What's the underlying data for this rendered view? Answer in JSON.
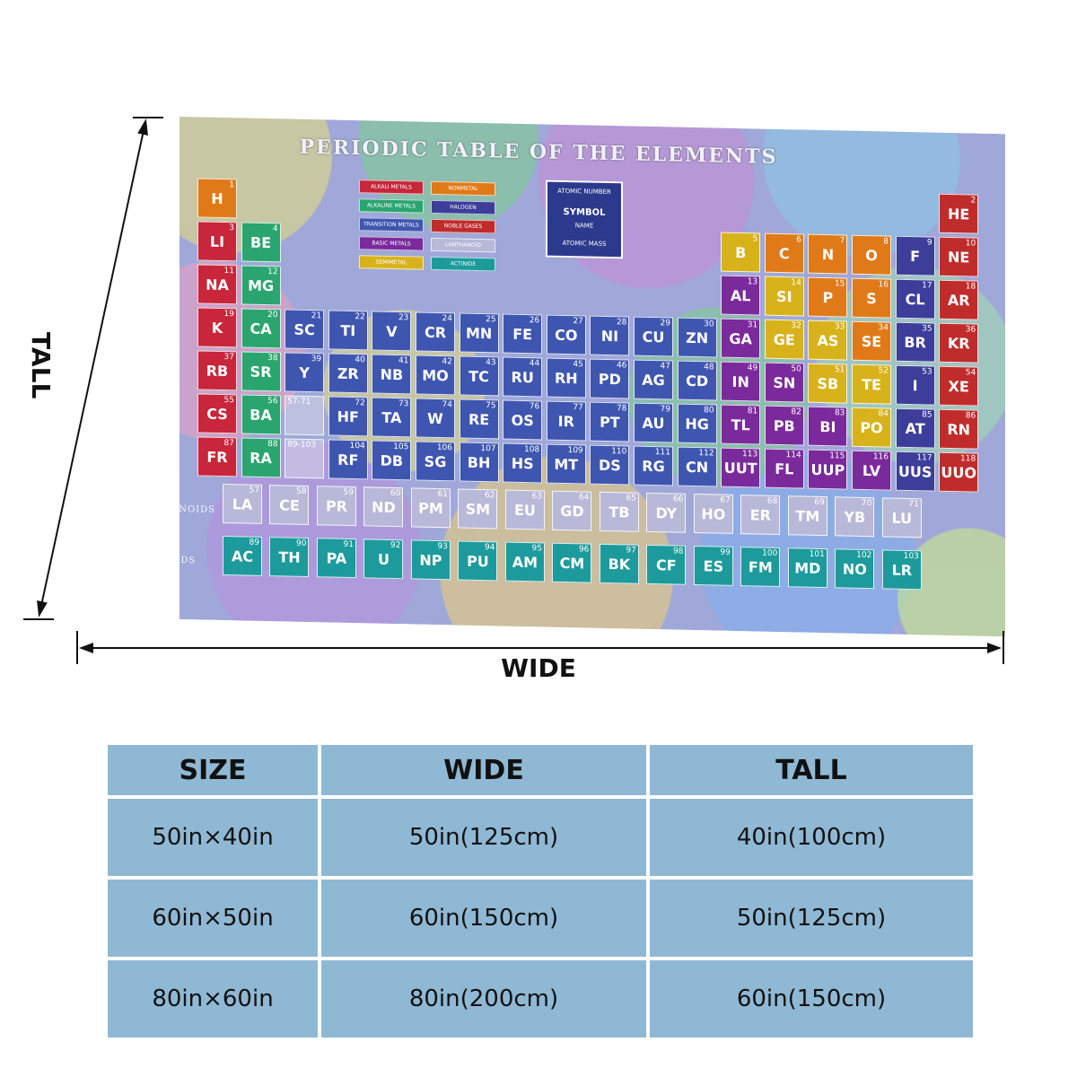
{
  "blanket": {
    "title": "PERIODIC TABLE OF THE ELEMENTS",
    "legend": [
      {
        "label": "ALKALI METALS",
        "color": "#c8263a"
      },
      {
        "label": "NONMETAL",
        "color": "#e07a18"
      },
      {
        "label": "ALKALINE METALS",
        "color": "#2aa56f"
      },
      {
        "label": "HALOGEN",
        "color": "#3d3d9a"
      },
      {
        "label": "TRANSITION METALS",
        "color": "#3f56b0"
      },
      {
        "label": "NOBLE GASES",
        "color": "#c02c2c"
      },
      {
        "label": "BASIC METALS",
        "color": "#7b2a9b"
      },
      {
        "label": "LANTHANOID",
        "color": "#b8b8d8"
      },
      {
        "label": "SEMIMETAL",
        "color": "#d8b21a"
      },
      {
        "label": "ACTINIDE",
        "color": "#1d9a9c"
      }
    ],
    "key": {
      "number": "ATOMIC NUMBER",
      "symbol": "SYMBOL",
      "name": "NAME",
      "mass": "ATOMIC MASS"
    },
    "lanthanoids_label": "LANTHANOIDS",
    "actinoids_label": "ACTINOIDS",
    "placeholders": {
      "lan": "57-71",
      "act": "89-103"
    },
    "elements": [
      {
        "s": "H",
        "n": 1,
        "r": 1,
        "c": 1,
        "k": "#e07a18"
      },
      {
        "s": "HE",
        "n": 2,
        "r": 1,
        "c": 18,
        "k": "#c02c2c"
      },
      {
        "s": "LI",
        "n": 3,
        "r": 2,
        "c": 1,
        "k": "#c8263a"
      },
      {
        "s": "BE",
        "n": 4,
        "r": 2,
        "c": 2,
        "k": "#2aa56f"
      },
      {
        "s": "B",
        "n": 5,
        "r": 2,
        "c": 13,
        "k": "#d8b21a"
      },
      {
        "s": "C",
        "n": 6,
        "r": 2,
        "c": 14,
        "k": "#e07a18"
      },
      {
        "s": "N",
        "n": 7,
        "r": 2,
        "c": 15,
        "k": "#e07a18"
      },
      {
        "s": "O",
        "n": 8,
        "r": 2,
        "c": 16,
        "k": "#e07a18"
      },
      {
        "s": "F",
        "n": 9,
        "r": 2,
        "c": 17,
        "k": "#3d3d9a"
      },
      {
        "s": "NE",
        "n": 10,
        "r": 2,
        "c": 18,
        "k": "#c02c2c"
      },
      {
        "s": "NA",
        "n": 11,
        "r": 3,
        "c": 1,
        "k": "#c8263a"
      },
      {
        "s": "MG",
        "n": 12,
        "r": 3,
        "c": 2,
        "k": "#2aa56f"
      },
      {
        "s": "AL",
        "n": 13,
        "r": 3,
        "c": 13,
        "k": "#7b2a9b"
      },
      {
        "s": "SI",
        "n": 14,
        "r": 3,
        "c": 14,
        "k": "#d8b21a"
      },
      {
        "s": "P",
        "n": 15,
        "r": 3,
        "c": 15,
        "k": "#e07a18"
      },
      {
        "s": "S",
        "n": 16,
        "r": 3,
        "c": 16,
        "k": "#e07a18"
      },
      {
        "s": "CL",
        "n": 17,
        "r": 3,
        "c": 17,
        "k": "#3d3d9a"
      },
      {
        "s": "AR",
        "n": 18,
        "r": 3,
        "c": 18,
        "k": "#c02c2c"
      },
      {
        "s": "K",
        "n": 19,
        "r": 4,
        "c": 1,
        "k": "#c8263a"
      },
      {
        "s": "CA",
        "n": 20,
        "r": 4,
        "c": 2,
        "k": "#2aa56f"
      },
      {
        "s": "SC",
        "n": 21,
        "r": 4,
        "c": 3,
        "k": "#3f56b0"
      },
      {
        "s": "TI",
        "n": 22,
        "r": 4,
        "c": 4,
        "k": "#3f56b0"
      },
      {
        "s": "V",
        "n": 23,
        "r": 4,
        "c": 5,
        "k": "#3f56b0"
      },
      {
        "s": "CR",
        "n": 24,
        "r": 4,
        "c": 6,
        "k": "#3f56b0"
      },
      {
        "s": "MN",
        "n": 25,
        "r": 4,
        "c": 7,
        "k": "#3f56b0"
      },
      {
        "s": "FE",
        "n": 26,
        "r": 4,
        "c": 8,
        "k": "#3f56b0"
      },
      {
        "s": "CO",
        "n": 27,
        "r": 4,
        "c": 9,
        "k": "#3f56b0"
      },
      {
        "s": "NI",
        "n": 28,
        "r": 4,
        "c": 10,
        "k": "#3f56b0"
      },
      {
        "s": "CU",
        "n": 29,
        "r": 4,
        "c": 11,
        "k": "#3f56b0"
      },
      {
        "s": "ZN",
        "n": 30,
        "r": 4,
        "c": 12,
        "k": "#3f56b0"
      },
      {
        "s": "GA",
        "n": 31,
        "r": 4,
        "c": 13,
        "k": "#7b2a9b"
      },
      {
        "s": "GE",
        "n": 32,
        "r": 4,
        "c": 14,
        "k": "#d8b21a"
      },
      {
        "s": "AS",
        "n": 33,
        "r": 4,
        "c": 15,
        "k": "#d8b21a"
      },
      {
        "s": "SE",
        "n": 34,
        "r": 4,
        "c": 16,
        "k": "#e07a18"
      },
      {
        "s": "BR",
        "n": 35,
        "r": 4,
        "c": 17,
        "k": "#3d3d9a"
      },
      {
        "s": "KR",
        "n": 36,
        "r": 4,
        "c": 18,
        "k": "#c02c2c"
      },
      {
        "s": "RB",
        "n": 37,
        "r": 5,
        "c": 1,
        "k": "#c8263a"
      },
      {
        "s": "SR",
        "n": 38,
        "r": 5,
        "c": 2,
        "k": "#2aa56f"
      },
      {
        "s": "Y",
        "n": 39,
        "r": 5,
        "c": 3,
        "k": "#3f56b0"
      },
      {
        "s": "ZR",
        "n": 40,
        "r": 5,
        "c": 4,
        "k": "#3f56b0"
      },
      {
        "s": "NB",
        "n": 41,
        "r": 5,
        "c": 5,
        "k": "#3f56b0"
      },
      {
        "s": "MO",
        "n": 42,
        "r": 5,
        "c": 6,
        "k": "#3f56b0"
      },
      {
        "s": "TC",
        "n": 43,
        "r": 5,
        "c": 7,
        "k": "#3f56b0"
      },
      {
        "s": "RU",
        "n": 44,
        "r": 5,
        "c": 8,
        "k": "#3f56b0"
      },
      {
        "s": "RH",
        "n": 45,
        "r": 5,
        "c": 9,
        "k": "#3f56b0"
      },
      {
        "s": "PD",
        "n": 46,
        "r": 5,
        "c": 10,
        "k": "#3f56b0"
      },
      {
        "s": "AG",
        "n": 47,
        "r": 5,
        "c": 11,
        "k": "#3f56b0"
      },
      {
        "s": "CD",
        "n": 48,
        "r": 5,
        "c": 12,
        "k": "#3f56b0"
      },
      {
        "s": "IN",
        "n": 49,
        "r": 5,
        "c": 13,
        "k": "#7b2a9b"
      },
      {
        "s": "SN",
        "n": 50,
        "r": 5,
        "c": 14,
        "k": "#7b2a9b"
      },
      {
        "s": "SB",
        "n": 51,
        "r": 5,
        "c": 15,
        "k": "#d8b21a"
      },
      {
        "s": "TE",
        "n": 52,
        "r": 5,
        "c": 16,
        "k": "#d8b21a"
      },
      {
        "s": "I",
        "n": 53,
        "r": 5,
        "c": 17,
        "k": "#3d3d9a"
      },
      {
        "s": "XE",
        "n": 54,
        "r": 5,
        "c": 18,
        "k": "#c02c2c"
      },
      {
        "s": "CS",
        "n": 55,
        "r": 6,
        "c": 1,
        "k": "#c8263a"
      },
      {
        "s": "BA",
        "n": 56,
        "r": 6,
        "c": 2,
        "k": "#2aa56f"
      },
      {
        "s": "HF",
        "n": 72,
        "r": 6,
        "c": 4,
        "k": "#3f56b0"
      },
      {
        "s": "TA",
        "n": 73,
        "r": 6,
        "c": 5,
        "k": "#3f56b0"
      },
      {
        "s": "W",
        "n": 74,
        "r": 6,
        "c": 6,
        "k": "#3f56b0"
      },
      {
        "s": "RE",
        "n": 75,
        "r": 6,
        "c": 7,
        "k": "#3f56b0"
      },
      {
        "s": "OS",
        "n": 76,
        "r": 6,
        "c": 8,
        "k": "#3f56b0"
      },
      {
        "s": "IR",
        "n": 77,
        "r": 6,
        "c": 9,
        "k": "#3f56b0"
      },
      {
        "s": "PT",
        "n": 78,
        "r": 6,
        "c": 10,
        "k": "#3f56b0"
      },
      {
        "s": "AU",
        "n": 79,
        "r": 6,
        "c": 11,
        "k": "#3f56b0"
      },
      {
        "s": "HG",
        "n": 80,
        "r": 6,
        "c": 12,
        "k": "#3f56b0"
      },
      {
        "s": "TL",
        "n": 81,
        "r": 6,
        "c": 13,
        "k": "#7b2a9b"
      },
      {
        "s": "PB",
        "n": 82,
        "r": 6,
        "c": 14,
        "k": "#7b2a9b"
      },
      {
        "s": "BI",
        "n": 83,
        "r": 6,
        "c": 15,
        "k": "#7b2a9b"
      },
      {
        "s": "PO",
        "n": 84,
        "r": 6,
        "c": 16,
        "k": "#d8b21a"
      },
      {
        "s": "AT",
        "n": 85,
        "r": 6,
        "c": 17,
        "k": "#3d3d9a"
      },
      {
        "s": "RN",
        "n": 86,
        "r": 6,
        "c": 18,
        "k": "#c02c2c"
      },
      {
        "s": "FR",
        "n": 87,
        "r": 7,
        "c": 1,
        "k": "#c8263a"
      },
      {
        "s": "RA",
        "n": 88,
        "r": 7,
        "c": 2,
        "k": "#2aa56f"
      },
      {
        "s": "RF",
        "n": 104,
        "r": 7,
        "c": 4,
        "k": "#3f56b0"
      },
      {
        "s": "DB",
        "n": 105,
        "r": 7,
        "c": 5,
        "k": "#3f56b0"
      },
      {
        "s": "SG",
        "n": 106,
        "r": 7,
        "c": 6,
        "k": "#3f56b0"
      },
      {
        "s": "BH",
        "n": 107,
        "r": 7,
        "c": 7,
        "k": "#3f56b0"
      },
      {
        "s": "HS",
        "n": 108,
        "r": 7,
        "c": 8,
        "k": "#3f56b0"
      },
      {
        "s": "MT",
        "n": 109,
        "r": 7,
        "c": 9,
        "k": "#3f56b0"
      },
      {
        "s": "DS",
        "n": 110,
        "r": 7,
        "c": 10,
        "k": "#3f56b0"
      },
      {
        "s": "RG",
        "n": 111,
        "r": 7,
        "c": 11,
        "k": "#3f56b0"
      },
      {
        "s": "CN",
        "n": 112,
        "r": 7,
        "c": 12,
        "k": "#3f56b0"
      },
      {
        "s": "UUT",
        "n": 113,
        "r": 7,
        "c": 13,
        "k": "#7b2a9b"
      },
      {
        "s": "FL",
        "n": 114,
        "r": 7,
        "c": 14,
        "k": "#7b2a9b"
      },
      {
        "s": "UUP",
        "n": 115,
        "r": 7,
        "c": 15,
        "k": "#7b2a9b"
      },
      {
        "s": "LV",
        "n": 116,
        "r": 7,
        "c": 16,
        "k": "#7b2a9b"
      },
      {
        "s": "UUS",
        "n": 117,
        "r": 7,
        "c": 17,
        "k": "#3d3d9a"
      },
      {
        "s": "UUO",
        "n": 118,
        "r": 7,
        "c": 18,
        "k": "#c02c2c"
      }
    ],
    "lanthanoids": [
      {
        "s": "LA",
        "n": 57
      },
      {
        "s": "CE",
        "n": 58
      },
      {
        "s": "PR",
        "n": 59
      },
      {
        "s": "ND",
        "n": 60
      },
      {
        "s": "PM",
        "n": 61
      },
      {
        "s": "SM",
        "n": 62
      },
      {
        "s": "EU",
        "n": 63
      },
      {
        "s": "GD",
        "n": 64
      },
      {
        "s": "TB",
        "n": 65
      },
      {
        "s": "DY",
        "n": 66
      },
      {
        "s": "HO",
        "n": 67
      },
      {
        "s": "ER",
        "n": 68
      },
      {
        "s": "TM",
        "n": 69
      },
      {
        "s": "YB",
        "n": 70
      },
      {
        "s": "LU",
        "n": 71
      }
    ],
    "actinoids": [
      {
        "s": "AC",
        "n": 89
      },
      {
        "s": "TH",
        "n": 90
      },
      {
        "s": "PA",
        "n": 91
      },
      {
        "s": "U",
        "n": 92
      },
      {
        "s": "NP",
        "n": 93
      },
      {
        "s": "PU",
        "n": 94
      },
      {
        "s": "AM",
        "n": 95
      },
      {
        "s": "CM",
        "n": 96
      },
      {
        "s": "BK",
        "n": 97
      },
      {
        "s": "CF",
        "n": 98
      },
      {
        "s": "ES",
        "n": 99
      },
      {
        "s": "FM",
        "n": 100
      },
      {
        "s": "MD",
        "n": 101
      },
      {
        "s": "NO",
        "n": 102
      },
      {
        "s": "LR",
        "n": 103
      }
    ]
  },
  "dimensions": {
    "tall_label": "TALL",
    "wide_label": "WIDE"
  },
  "size_table": {
    "headers": [
      "SIZE",
      "WIDE",
      "TALL"
    ],
    "rows": [
      [
        "50in×40in",
        "50in(125cm)",
        "40in(100cm)"
      ],
      [
        "60in×50in",
        "60in(150cm)",
        "50in(125cm)"
      ],
      [
        "80in×60in",
        "80in(200cm)",
        "60in(150cm)"
      ]
    ]
  },
  "colors": {
    "table_bg": "#8fb8d4",
    "lanthanoid": "#b8b8d8",
    "actinoid": "#1d9a9c"
  }
}
